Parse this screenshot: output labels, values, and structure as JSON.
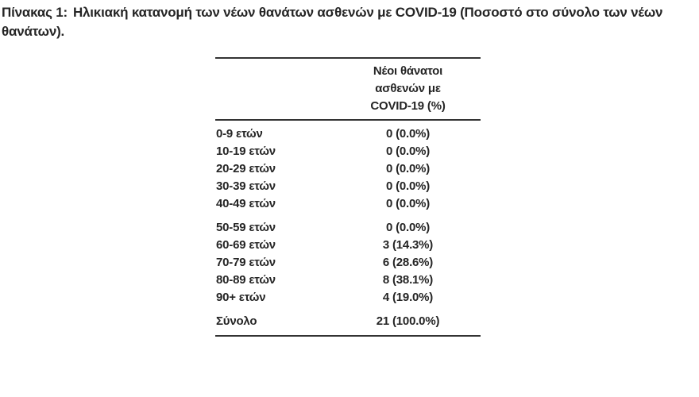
{
  "caption": {
    "label": "Πίνακας 1:",
    "line1": "Ηλικιακή κατανομή των νέων θανάτων ασθενών με COVID-19 (Ποσοστό στο σύνολο των νέων",
    "line2": "θανάτων)."
  },
  "table": {
    "header": {
      "lines": [
        "Νέοι θάνατοι",
        "ασθενών με",
        "COVID-19 (%)"
      ]
    },
    "groups": [
      {
        "rows": [
          {
            "label": "0-9 ετών",
            "value": "0 (0.0%)"
          },
          {
            "label": "10-19 ετών",
            "value": "0 (0.0%)"
          },
          {
            "label": "20-29 ετών",
            "value": "0 (0.0%)"
          },
          {
            "label": "30-39 ετών",
            "value": "0 (0.0%)"
          },
          {
            "label": "40-49 ετών",
            "value": "0 (0.0%)"
          }
        ]
      },
      {
        "rows": [
          {
            "label": "50-59 ετών",
            "value": "0 (0.0%)"
          },
          {
            "label": "60-69 ετών",
            "value": "3 (14.3%)"
          },
          {
            "label": "70-79 ετών",
            "value": "6 (28.6%)"
          },
          {
            "label": "80-89 ετών",
            "value": "8 (38.1%)"
          },
          {
            "label": "90+ ετών",
            "value": "4 (19.0%)"
          }
        ]
      }
    ],
    "total": {
      "label": "Σύνολο",
      "value": "21 (100.0%)"
    }
  },
  "colors": {
    "text": "#252525",
    "rule": "#333333",
    "background": "#ffffff"
  }
}
